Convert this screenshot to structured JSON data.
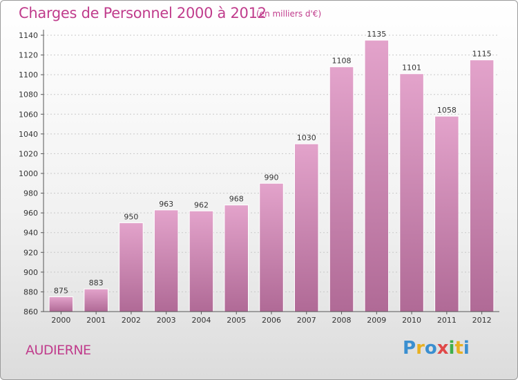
{
  "title": "Charges de Personnel 2000 à 2012",
  "subtitle": "(en milliers d'€)",
  "commune": "AUDIERNE",
  "logo": {
    "letters": [
      "P",
      "r",
      "o",
      "x",
      "i",
      "t",
      "i"
    ],
    "colors": [
      "#3a8fd0",
      "#e8b020",
      "#3a8fd0",
      "#e04848",
      "#3fae49",
      "#e8b020",
      "#3a8fd0"
    ]
  },
  "colors": {
    "bar_top": "#e3a3cb",
    "bar_bottom": "#b06a96",
    "accent": "#c03c8c"
  },
  "chart_data": {
    "type": "bar",
    "categories": [
      "2000",
      "2001",
      "2002",
      "2003",
      "2004",
      "2005",
      "2006",
      "2007",
      "2008",
      "2009",
      "2010",
      "2011",
      "2012"
    ],
    "values": [
      875,
      883,
      950,
      963,
      962,
      968,
      990,
      1030,
      1108,
      1135,
      1101,
      1058,
      1115
    ],
    "ylim": [
      860,
      1140
    ],
    "yticks": [
      860,
      880,
      900,
      920,
      940,
      960,
      980,
      1000,
      1020,
      1040,
      1060,
      1080,
      1100,
      1120,
      1140
    ],
    "grid": true
  }
}
